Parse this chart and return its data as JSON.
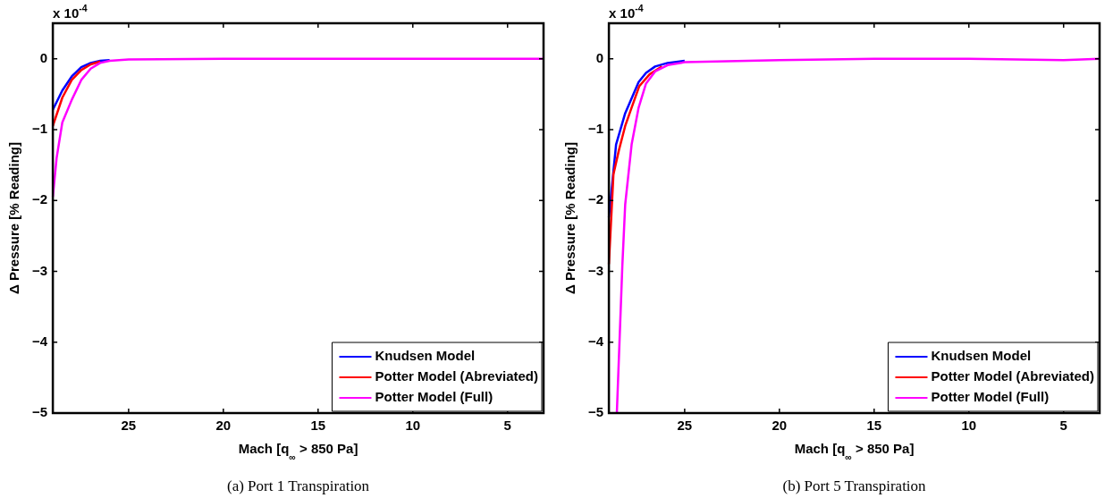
{
  "chart_data": [
    {
      "type": "line",
      "title": "(a) Port 1 Transpiration",
      "xlabel": "Mach [q$_{∞}$ > 850 Pa]",
      "ylabel": "Δ Pressure [% Reading]",
      "annotations": [
        "x 10$^{-4}$"
      ],
      "xlim": [
        29,
        3.1
      ],
      "xticks": [
        25,
        20,
        15,
        10,
        5
      ],
      "ylim": [
        -5,
        0.5
      ],
      "yticks": [
        -5,
        -4,
        -3,
        -2,
        -1,
        0
      ],
      "grid": false,
      "legend": "bottom right",
      "marker": "none",
      "line_style": "solid",
      "series": [
        {
          "name": "Knudsen Model",
          "color": "#0000ff",
          "x": [
            29,
            28.5,
            28,
            27.5,
            27,
            26.5,
            26
          ],
          "values": [
            -0.72,
            -0.45,
            -0.25,
            -0.12,
            -0.06,
            -0.03,
            -0.02
          ]
        },
        {
          "name": "Potter Model (Abreviated)",
          "color": "#ff0000",
          "x": [
            29,
            28.5,
            28,
            27.5,
            27,
            26.5
          ],
          "values": [
            -0.95,
            -0.55,
            -0.3,
            -0.16,
            -0.08,
            -0.04
          ]
        },
        {
          "name": "Potter Model (Full)",
          "color": "#ff00ff",
          "x": [
            29,
            28.8,
            28.5,
            28,
            27.5,
            27,
            26.5,
            26,
            25,
            20,
            15,
            10,
            5,
            3.1
          ],
          "values": [
            -1.95,
            -1.4,
            -0.9,
            -0.58,
            -0.3,
            -0.14,
            -0.06,
            -0.03,
            -0.01,
            0,
            0,
            0,
            0,
            0
          ]
        }
      ]
    },
    {
      "type": "line",
      "title": "(b) Port 5 Transpiration",
      "xlabel": "Mach [q$_{∞}$ > 850 Pa]",
      "ylabel": "Δ Pressure [% Reading]",
      "annotations": [
        "x 10$^{-4}$"
      ],
      "xlim": [
        29,
        3.1
      ],
      "xticks": [
        25,
        20,
        15,
        10,
        5
      ],
      "ylim": [
        -5,
        0.5
      ],
      "yticks": [
        -5,
        -4,
        -3,
        -2,
        -1,
        0
      ],
      "grid": false,
      "legend": "bottom right",
      "marker": "none",
      "line_style": "solid",
      "series": [
        {
          "name": "Knudsen Model",
          "color": "#0000ff",
          "x": [
            29,
            28.62,
            28.14,
            27.8,
            27.43,
            27.04,
            26.56,
            25.9,
            25
          ],
          "values": [
            -2.24,
            -1.21,
            -0.77,
            -0.56,
            -0.33,
            -0.2,
            -0.11,
            -0.06,
            -0.03
          ]
        },
        {
          "name": "Potter Model (Abreviated)",
          "color": "#ff0000",
          "x": [
            29,
            28.76,
            28.47,
            28.14,
            27.8,
            27.4,
            26.85,
            26.2
          ],
          "values": [
            -2.9,
            -1.63,
            -1.29,
            -0.95,
            -0.69,
            -0.39,
            -0.22,
            -0.11
          ]
        },
        {
          "name": "Potter Model (Full)",
          "color": "#ff00ff",
          "x": [
            28.58,
            28.29,
            28.14,
            27.8,
            27.43,
            27.04,
            26.56,
            25.9,
            25,
            20,
            15,
            10,
            5,
            3.1
          ],
          "values": [
            -5,
            -2.92,
            -2.06,
            -1.21,
            -0.69,
            -0.35,
            -0.18,
            -0.09,
            -0.05,
            -0.02,
            0,
            0,
            -0.02,
            0
          ]
        }
      ]
    }
  ]
}
